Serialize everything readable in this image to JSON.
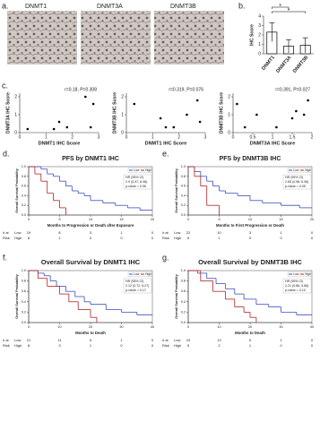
{
  "figure_a": {
    "label": "a.",
    "images": [
      "DNMT1",
      "DNMT3A",
      "DNMT3B"
    ]
  },
  "chart_data": [
    {
      "type": "bar",
      "label": "b.",
      "ylabel": "IHC Score",
      "categories": [
        "DNMT1",
        "DNMT3A",
        "DNMT3B"
      ],
      "values": [
        2.3,
        0.8,
        0.9
      ],
      "errors": [
        1.0,
        0.7,
        0.8
      ],
      "ylim": [
        0,
        4
      ],
      "yticks": [
        0,
        1,
        2,
        3,
        4
      ],
      "annotations": [
        "*",
        "*"
      ],
      "color": "#ffffff"
    },
    {
      "type": "scatter",
      "label": "c.",
      "annotation": "r=0.18, P=0.308",
      "xlabel": "DNMT1 IHC Score",
      "ylabel": "DNMT3A IHC Score",
      "x": [
        0.3,
        1.3,
        1.5,
        1.8,
        2.5,
        2.7,
        2.8
      ],
      "values": [
        0.2,
        0.2,
        0.6,
        0.3,
        2.0,
        0.3,
        1.6
      ],
      "xlim": [
        0,
        3
      ],
      "xticks": [
        0,
        1,
        2,
        3
      ],
      "ylim": [
        0,
        2.2
      ],
      "yticks": [
        0,
        1,
        2
      ],
      "color": "#000000"
    },
    {
      "type": "scatter",
      "annotation": "r=0.319, P=0.076",
      "xlabel": "DNMT1 IHC Score",
      "ylabel": "DNMT3B IHC Score",
      "x": [
        0.3,
        1.3,
        1.5,
        1.8,
        2.3,
        2.7,
        2.8
      ],
      "values": [
        1.6,
        0.8,
        0.3,
        0.3,
        1.0,
        1.8,
        0.6
      ],
      "xlim": [
        0,
        3
      ],
      "xticks": [
        0,
        1,
        2,
        3
      ],
      "ylim": [
        0,
        2.2
      ],
      "yticks": [
        0,
        1,
        2
      ],
      "color": "#000000"
    },
    {
      "type": "scatter",
      "annotation": "r=0.391, P=0.027",
      "xlabel": "DNMT3A IHC Score",
      "ylabel": "DNMT3B IHC Score",
      "x": [
        0.1,
        0.3,
        0.6,
        1.1,
        1.5,
        1.6,
        1.8,
        1.9
      ],
      "values": [
        1.6,
        0.3,
        1.0,
        0.3,
        0.8,
        1.2,
        1.0,
        1.8
      ],
      "xlim": [
        0,
        2
      ],
      "xticks": [
        0,
        0.5,
        1,
        1.5,
        2
      ],
      "ylim": [
        0,
        2.2
      ],
      "yticks": [
        0,
        1,
        2
      ],
      "color": "#000000"
    },
    {
      "type": "km",
      "label": "d.",
      "title": "PFS by DNMT1 IHC",
      "xlabel": "Months to Progression or Death after Exposure",
      "ylabel": "Overall Survival Probability",
      "xlim": [
        0,
        20
      ],
      "xticks": [
        0,
        5,
        10,
        15,
        20
      ],
      "ylim": [
        0,
        1
      ],
      "yticks": [
        {
          "value": 0,
          "label": "0.0"
        },
        {
          "value": 0.2,
          "label": "0.2"
        },
        {
          "value": 0.4,
          "label": "0.4"
        },
        {
          "value": 0.6,
          "label": "0.6"
        },
        {
          "value": 0.8,
          "label": "0.8"
        },
        {
          "value": 1,
          "label": "1.0"
        }
      ],
      "hr_text": [
        "HR (95% CI)",
        "2.9 (0.97, 8.46)",
        "p-value = 0.06"
      ],
      "series": [
        {
          "name": "Low",
          "color": "#3b4cc0",
          "x": [
            0,
            2,
            3,
            4,
            5,
            6,
            7,
            8,
            9,
            10,
            12,
            14,
            16,
            18,
            20
          ],
          "values": [
            1,
            0.95,
            0.85,
            0.8,
            0.7,
            0.6,
            0.5,
            0.45,
            0.4,
            0.3,
            0.25,
            0.2,
            0.15,
            0.1,
            0.1
          ]
        },
        {
          "name": "High",
          "color": "#b22222",
          "x": [
            0,
            1,
            2,
            3,
            4,
            5,
            6
          ],
          "values": [
            1,
            0.85,
            0.7,
            0.45,
            0.3,
            0.15,
            0
          ]
        }
      ],
      "risk_label": [
        "# at",
        "Risk"
      ],
      "risk_rows": [
        {
          "name": "Low",
          "counts": [
            19,
            8,
            3,
            1,
            0
          ]
        },
        {
          "name": "High",
          "counts": [
            8,
            1,
            0,
            0,
            0
          ]
        }
      ]
    },
    {
      "type": "km",
      "label": "e.",
      "title": "PFS by DNMT3B IHC",
      "xlabel": "Months to First Progression or Death",
      "ylabel": "Overall Survival Probability",
      "xlim": [
        0,
        20
      ],
      "xticks": [
        0,
        5,
        10,
        15,
        20
      ],
      "ylim": [
        0,
        1
      ],
      "yticks": [
        {
          "value": 0,
          "label": "0.0"
        },
        {
          "value": 0.2,
          "label": "0.2"
        },
        {
          "value": 0.4,
          "label": "0.4"
        },
        {
          "value": 0.6,
          "label": "0.6"
        },
        {
          "value": 0.8,
          "label": "0.8"
        },
        {
          "value": 1,
          "label": "1.0"
        }
      ],
      "hr_text": [
        "HR (95% CI)",
        "2.65 (0.98, 6.08)",
        "p-value = 0.05"
      ],
      "series": [
        {
          "name": "Low",
          "color": "#3b4cc0",
          "x": [
            0,
            1,
            2,
            3,
            4,
            5,
            6,
            8,
            10,
            12,
            15,
            18,
            20
          ],
          "values": [
            1,
            0.9,
            0.8,
            0.7,
            0.6,
            0.5,
            0.45,
            0.4,
            0.3,
            0.25,
            0.2,
            0.15,
            0.15
          ]
        },
        {
          "name": "High",
          "color": "#b22222",
          "x": [
            0,
            1,
            2,
            3,
            5
          ],
          "values": [
            1,
            0.8,
            0.6,
            0.2,
            0
          ]
        }
      ],
      "risk_label": [
        "# at",
        "Risk"
      ],
      "risk_rows": [
        {
          "name": "Low",
          "counts": [
            22,
            10,
            3,
            1,
            0
          ]
        },
        {
          "name": "High",
          "counts": [
            5,
            1,
            0,
            0,
            0
          ]
        }
      ]
    },
    {
      "type": "km",
      "label": "f.",
      "title": "Overall Survival by DNMT1 IHC",
      "xlabel": "Months to Death",
      "ylabel": "Overall Survival Probability",
      "xlim": [
        0,
        40
      ],
      "xticks": [
        0,
        10,
        20,
        30,
        40
      ],
      "ylim": [
        0,
        1
      ],
      "yticks": [
        {
          "value": 0,
          "label": "0.0"
        },
        {
          "value": 0.2,
          "label": "0.2"
        },
        {
          "value": 0.4,
          "label": "0.4"
        },
        {
          "value": 0.6,
          "label": "0.6"
        },
        {
          "value": 0.8,
          "label": "0.8"
        },
        {
          "value": 1,
          "label": "1.0"
        }
      ],
      "hr_text": [
        "HR (95% CI)",
        "2.12 (0.72, 6.27)",
        "p-value = 0.17"
      ],
      "series": [
        {
          "name": "Low",
          "color": "#3b4cc0",
          "x": [
            0,
            3,
            5,
            7,
            9,
            12,
            15,
            18,
            20,
            25,
            30,
            35,
            40
          ],
          "values": [
            1,
            0.95,
            0.9,
            0.8,
            0.7,
            0.6,
            0.5,
            0.4,
            0.35,
            0.25,
            0.2,
            0.15,
            0.15
          ]
        },
        {
          "name": "High",
          "color": "#b22222",
          "x": [
            0,
            3,
            6,
            10,
            13,
            16,
            20,
            22
          ],
          "values": [
            1,
            0.85,
            0.7,
            0.55,
            0.4,
            0.25,
            0.1,
            0
          ]
        }
      ],
      "risk_label": [
        "# at",
        "Risk"
      ],
      "risk_rows": [
        {
          "name": "Low",
          "counts": [
            21,
            11,
            5,
            1,
            0
          ]
        },
        {
          "name": "High",
          "counts": [
            8,
            3,
            1,
            0,
            0
          ]
        }
      ]
    },
    {
      "type": "km",
      "label": "g.",
      "title": "Overall Survival by DNMT3B IHC",
      "xlabel": "Months to Death",
      "ylabel": "Overall Survival Probability",
      "xlim": [
        0,
        40
      ],
      "xticks": [
        0,
        10,
        20,
        30,
        40
      ],
      "ylim": [
        0,
        1
      ],
      "yticks": [
        {
          "value": 0,
          "label": "0.0"
        },
        {
          "value": 0.2,
          "label": "0.2"
        },
        {
          "value": 0.4,
          "label": "0.4"
        },
        {
          "value": 0.6,
          "label": "0.6"
        },
        {
          "value": 0.8,
          "label": "0.8"
        },
        {
          "value": 1,
          "label": "1.0"
        }
      ],
      "hr_text": [
        "HR (95% CI)",
        "2.21 (0.86, 5.86)",
        "p-value = 0.10"
      ],
      "series": [
        {
          "name": "Low",
          "color": "#3b4cc0",
          "x": [
            0,
            3,
            6,
            9,
            12,
            15,
            18,
            22,
            26,
            30,
            35,
            40
          ],
          "values": [
            1,
            0.95,
            0.85,
            0.75,
            0.65,
            0.55,
            0.45,
            0.35,
            0.3,
            0.2,
            0.15,
            0.15
          ]
        },
        {
          "name": "High",
          "color": "#b22222",
          "x": [
            0,
            4,
            8,
            12,
            15,
            18,
            20,
            22
          ],
          "values": [
            1,
            0.8,
            0.6,
            0.45,
            0.3,
            0.2,
            0.1,
            0
          ]
        }
      ],
      "risk_label": [
        "# at",
        "Risk"
      ],
      "risk_rows": [
        {
          "name": "Low",
          "counts": [
            24,
            13,
            5,
            1,
            0
          ]
        },
        {
          "name": "High",
          "counts": [
            5,
            2,
            1,
            0,
            0
          ]
        }
      ]
    }
  ]
}
